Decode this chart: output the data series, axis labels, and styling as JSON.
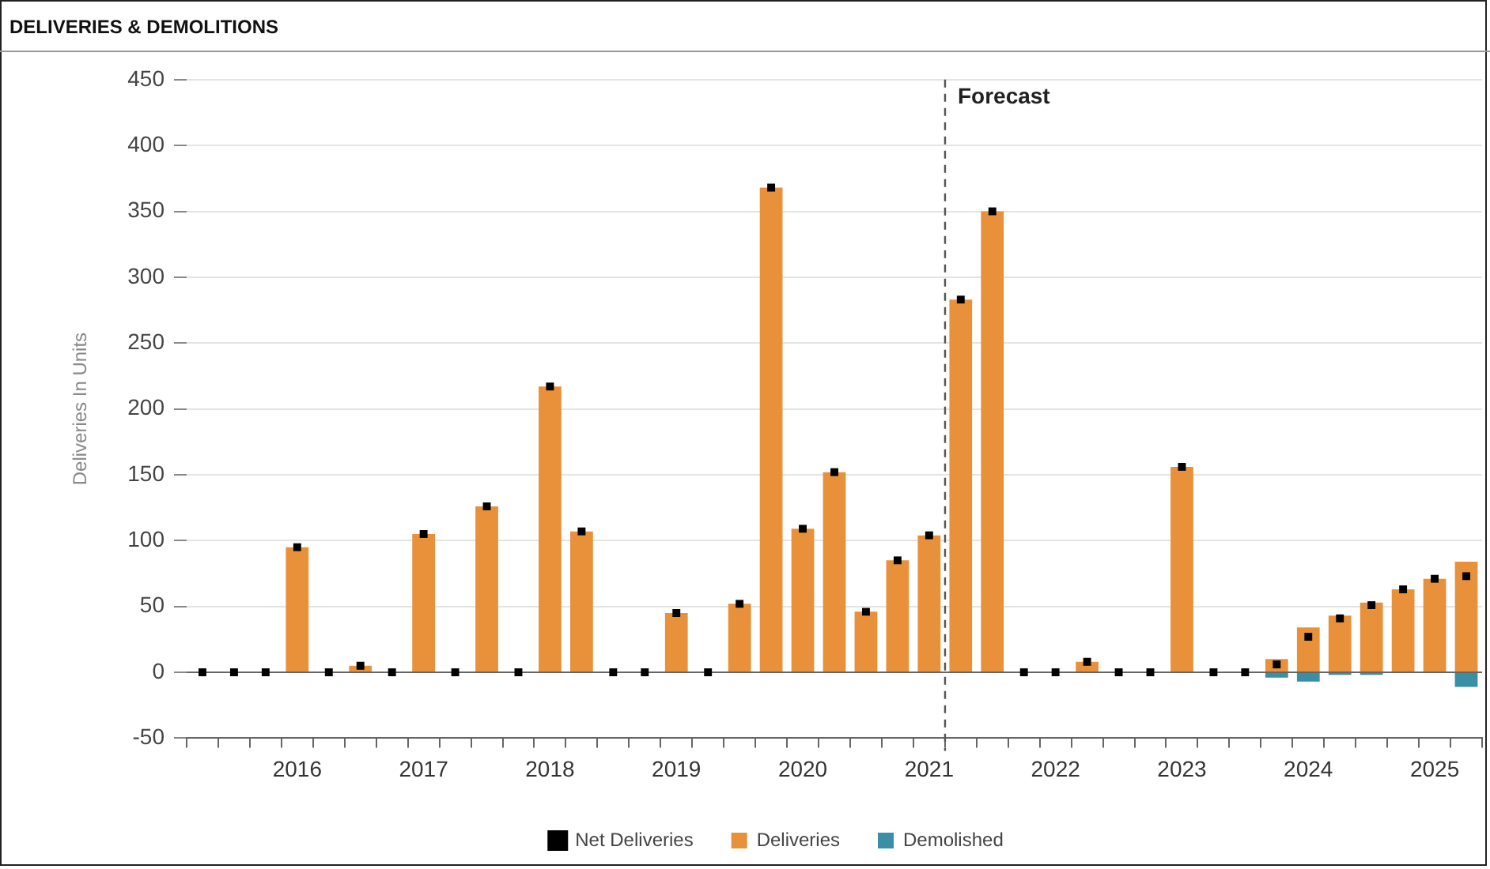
{
  "chart_data": {
    "type": "bar",
    "title": "DELIVERIES & DEMOLITIONS",
    "ylabel": "Deliveries In Units",
    "categories": [
      null,
      null,
      null,
      "2016",
      null,
      null,
      null,
      "2017",
      null,
      null,
      null,
      "2018",
      null,
      null,
      null,
      "2019",
      null,
      null,
      null,
      "2020",
      null,
      null,
      null,
      "2021",
      null,
      null,
      null,
      "2022",
      null,
      null,
      null,
      "2023",
      null,
      null,
      null,
      "2024",
      null,
      null,
      null,
      "2025",
      null
    ],
    "series": [
      {
        "name": "Deliveries",
        "color": "#e8913a",
        "values": [
          0,
          0,
          0,
          95,
          0,
          5,
          0,
          105,
          0,
          126,
          0,
          217,
          107,
          0,
          0,
          45,
          0,
          52,
          368,
          109,
          152,
          46,
          85,
          104,
          283,
          350,
          0,
          0,
          8,
          0,
          0,
          156,
          0,
          0,
          10,
          34,
          43,
          53,
          63,
          71,
          84
        ]
      },
      {
        "name": "Demolished",
        "color": "#3a8ea5",
        "values": [
          0,
          0,
          0,
          0,
          0,
          0,
          0,
          0,
          0,
          0,
          0,
          0,
          0,
          0,
          0,
          0,
          0,
          0,
          0,
          0,
          0,
          0,
          0,
          0,
          0,
          0,
          0,
          0,
          0,
          0,
          0,
          0,
          0,
          0,
          -4,
          -7,
          -2,
          -2,
          0,
          0,
          -11
        ]
      },
      {
        "name": "Net Deliveries",
        "color": "#000000",
        "type": "scatter",
        "marker": "square",
        "values": [
          0,
          0,
          0,
          95,
          0,
          5,
          0,
          105,
          0,
          126,
          0,
          217,
          107,
          0,
          0,
          45,
          0,
          52,
          368,
          109,
          152,
          46,
          85,
          104,
          283,
          350,
          0,
          0,
          8,
          0,
          0,
          156,
          0,
          0,
          6,
          27,
          41,
          51,
          63,
          71,
          73
        ]
      }
    ],
    "stacked": true,
    "ylim": [
      -50,
      450
    ],
    "yticks": [
      -50,
      0,
      50,
      100,
      150,
      200,
      250,
      300,
      350,
      400,
      450
    ],
    "grid": "y",
    "legend": "bottom",
    "ref_lines": [
      {
        "axis": "x",
        "value": "2021",
        "label": "Forecast",
        "line_style": "dashed",
        "color": "#555555"
      }
    ]
  }
}
